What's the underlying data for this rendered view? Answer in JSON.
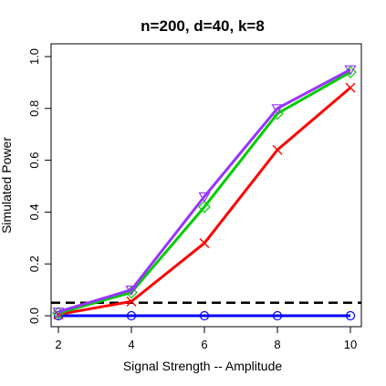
{
  "chart_data": {
    "type": "line",
    "title": "n=200, d=40, k=8",
    "xlabel": "Signal Strength -- Amplitude",
    "ylabel": "Simulated Power",
    "x": [
      2,
      4,
      6,
      8,
      10
    ],
    "xlim": [
      2,
      10
    ],
    "ylim": [
      0,
      1
    ],
    "xticks": [
      "2",
      "4",
      "6",
      "8",
      "10"
    ],
    "yticks": [
      "0.0",
      "0.2",
      "0.4",
      "0.6",
      "0.8",
      "1.0"
    ],
    "grid": false,
    "reference_line": {
      "y": 0.05,
      "style": "dashed",
      "color": "#000000"
    },
    "series": [
      {
        "values": [
          0.0,
          0.0,
          0.0,
          0.0,
          0.0
        ],
        "color": "#0000FF",
        "marker": "circle"
      },
      {
        "values": [
          0.005,
          0.055,
          0.28,
          0.64,
          0.88
        ],
        "color": "#FF0000",
        "marker": "x"
      },
      {
        "values": [
          0.01,
          0.09,
          0.42,
          0.78,
          0.94
        ],
        "color": "#00CC00",
        "marker": "diamond"
      },
      {
        "values": [
          0.015,
          0.1,
          0.46,
          0.8,
          0.95
        ],
        "color": "#9933FF",
        "marker": "triangle-down"
      }
    ]
  }
}
